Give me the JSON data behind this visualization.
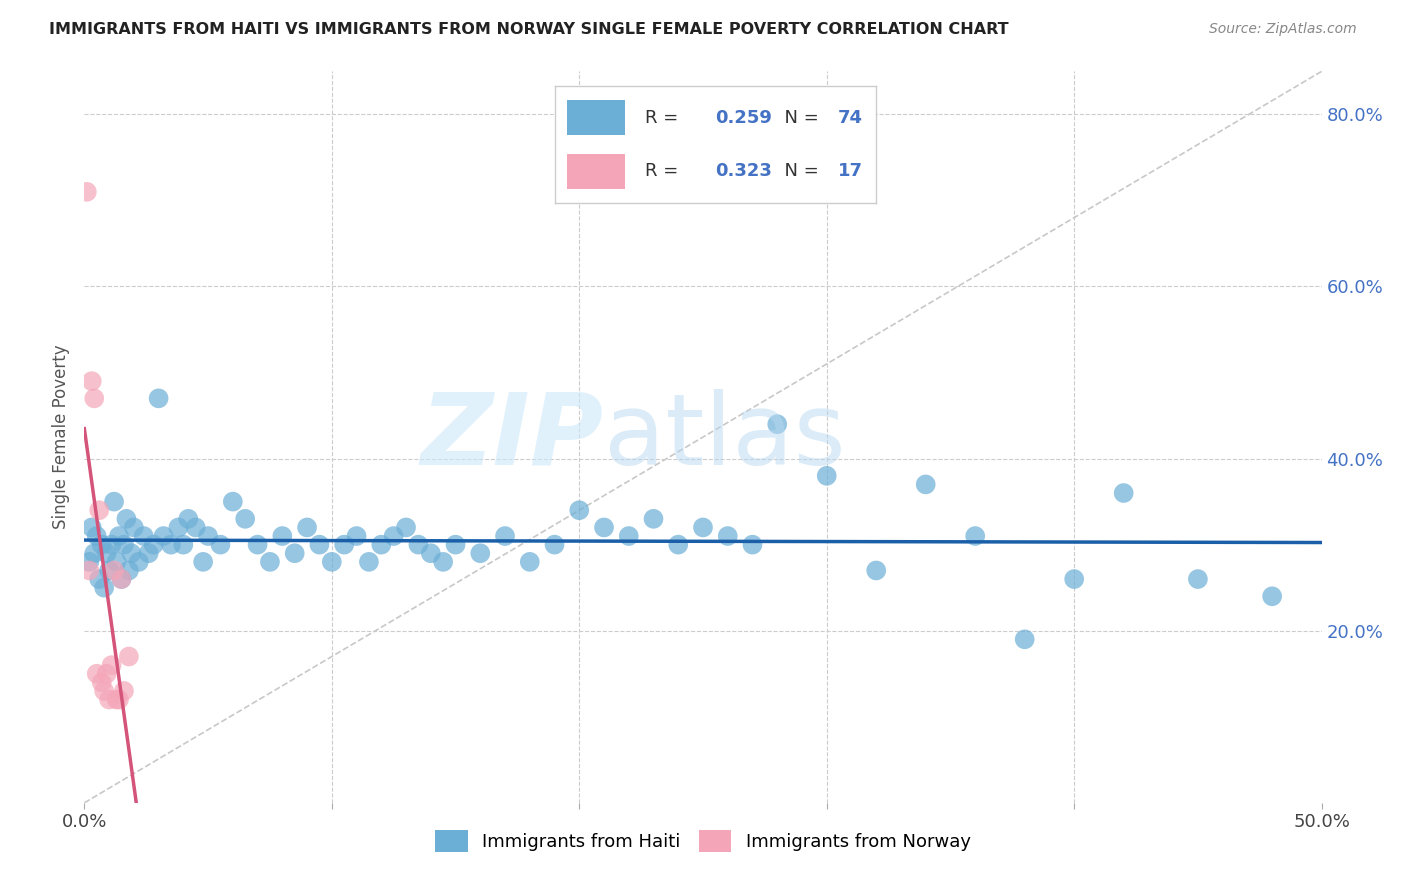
{
  "title": "IMMIGRANTS FROM HAITI VS IMMIGRANTS FROM NORWAY SINGLE FEMALE POVERTY CORRELATION CHART",
  "source": "Source: ZipAtlas.com",
  "ylabel": "Single Female Poverty",
  "right_yticks": [
    "20.0%",
    "40.0%",
    "60.0%",
    "80.0%"
  ],
  "right_ytick_vals": [
    0.2,
    0.4,
    0.6,
    0.8
  ],
  "xlim": [
    0.0,
    0.5
  ],
  "ylim": [
    0.0,
    0.85
  ],
  "haiti_R": 0.259,
  "haiti_N": 74,
  "norway_R": 0.323,
  "norway_N": 17,
  "haiti_color": "#6baed6",
  "norway_color": "#f4a6b8",
  "haiti_line_color": "#1a5fa8",
  "norway_line_color": "#d4547a",
  "diagonal_color": "#c8c8c8",
  "background": "#ffffff",
  "haiti_x": [
    0.002,
    0.003,
    0.004,
    0.005,
    0.006,
    0.007,
    0.008,
    0.009,
    0.01,
    0.011,
    0.012,
    0.013,
    0.014,
    0.015,
    0.016,
    0.017,
    0.018,
    0.019,
    0.02,
    0.022,
    0.024,
    0.026,
    0.028,
    0.03,
    0.032,
    0.035,
    0.038,
    0.04,
    0.042,
    0.045,
    0.048,
    0.05,
    0.055,
    0.06,
    0.065,
    0.07,
    0.075,
    0.08,
    0.085,
    0.09,
    0.095,
    0.1,
    0.105,
    0.11,
    0.115,
    0.12,
    0.125,
    0.13,
    0.135,
    0.14,
    0.145,
    0.15,
    0.16,
    0.17,
    0.18,
    0.19,
    0.2,
    0.21,
    0.22,
    0.23,
    0.24,
    0.25,
    0.26,
    0.27,
    0.28,
    0.3,
    0.32,
    0.34,
    0.36,
    0.38,
    0.4,
    0.42,
    0.45,
    0.48
  ],
  "haiti_y": [
    0.28,
    0.32,
    0.29,
    0.31,
    0.26,
    0.3,
    0.25,
    0.29,
    0.27,
    0.3,
    0.35,
    0.28,
    0.31,
    0.26,
    0.3,
    0.33,
    0.27,
    0.29,
    0.32,
    0.28,
    0.31,
    0.29,
    0.3,
    0.47,
    0.31,
    0.3,
    0.32,
    0.3,
    0.33,
    0.32,
    0.28,
    0.31,
    0.3,
    0.35,
    0.33,
    0.3,
    0.28,
    0.31,
    0.29,
    0.32,
    0.3,
    0.28,
    0.3,
    0.31,
    0.28,
    0.3,
    0.31,
    0.32,
    0.3,
    0.29,
    0.28,
    0.3,
    0.29,
    0.31,
    0.28,
    0.3,
    0.34,
    0.32,
    0.31,
    0.33,
    0.3,
    0.32,
    0.31,
    0.3,
    0.44,
    0.38,
    0.27,
    0.37,
    0.31,
    0.19,
    0.26,
    0.36,
    0.26,
    0.24
  ],
  "norway_x": [
    0.001,
    0.002,
    0.003,
    0.004,
    0.005,
    0.006,
    0.007,
    0.008,
    0.009,
    0.01,
    0.011,
    0.012,
    0.013,
    0.014,
    0.015,
    0.016,
    0.018
  ],
  "norway_y": [
    0.71,
    0.27,
    0.49,
    0.47,
    0.15,
    0.34,
    0.14,
    0.13,
    0.15,
    0.12,
    0.16,
    0.27,
    0.12,
    0.12,
    0.26,
    0.13,
    0.17
  ]
}
